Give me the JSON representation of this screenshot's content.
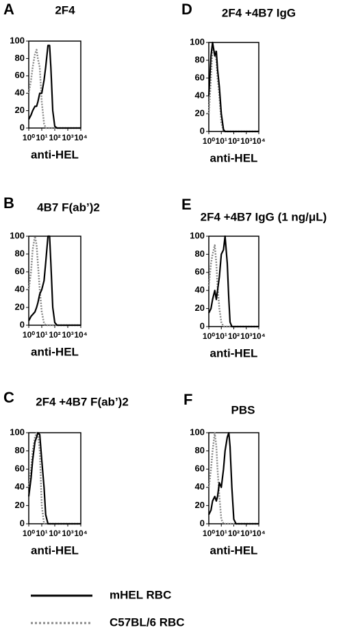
{
  "chart_data": [
    {
      "type": "line",
      "label": "A",
      "title": "2F4",
      "x_label": "anti-HEL",
      "log_x": true,
      "x": [
        1,
        1.5,
        2,
        3,
        4,
        5,
        7,
        10,
        15,
        20,
        30,
        40,
        50,
        70,
        100,
        150,
        200,
        500,
        1000,
        10000
      ],
      "xlim": [
        1,
        10000
      ],
      "xticks": [
        {
          "value": 1,
          "label": "10⁰"
        },
        {
          "value": 10,
          "label": "10¹"
        },
        {
          "value": 100,
          "label": "10²"
        },
        {
          "value": 1000,
          "label": "10³"
        },
        {
          "value": 10000,
          "label": "10⁴"
        }
      ],
      "ylim": [
        0,
        100
      ],
      "yticks": [
        0,
        20,
        40,
        60,
        80,
        100
      ],
      "series": [
        {
          "name": "mHEL RBC",
          "color": "#000000",
          "style": "solid",
          "values": [
            10,
            15,
            20,
            25,
            25,
            30,
            40,
            40,
            55,
            70,
            95,
            95,
            70,
            20,
            2,
            0,
            0,
            0,
            0,
            0
          ]
        },
        {
          "name": "C57BL/6 RBC",
          "color": "#888888",
          "style": "dotted",
          "values": [
            40,
            55,
            70,
            85,
            90,
            80,
            70,
            30,
            5,
            0,
            0,
            0,
            0,
            0,
            0,
            0,
            0,
            0,
            0,
            0
          ]
        }
      ]
    },
    {
      "type": "line",
      "label": "B",
      "title": "4B7 F(ab’)2",
      "x_label": "anti-HEL",
      "log_x": true,
      "x": [
        1,
        1.5,
        2,
        3,
        4,
        5,
        7,
        10,
        15,
        20,
        30,
        40,
        50,
        70,
        100,
        150,
        200,
        500,
        1000,
        10000
      ],
      "xlim": [
        1,
        10000
      ],
      "xticks": [
        {
          "value": 1,
          "label": "10⁰"
        },
        {
          "value": 10,
          "label": "10¹"
        },
        {
          "value": 100,
          "label": "10²"
        },
        {
          "value": 1000,
          "label": "10³"
        },
        {
          "value": 10000,
          "label": "10⁴"
        }
      ],
      "ylim": [
        0,
        100
      ],
      "yticks": [
        0,
        20,
        40,
        60,
        80,
        100
      ],
      "series": [
        {
          "name": "mHEL RBC",
          "color": "#000000",
          "style": "solid",
          "values": [
            5,
            10,
            12,
            15,
            20,
            25,
            35,
            40,
            50,
            70,
            100,
            100,
            70,
            20,
            3,
            0,
            0,
            0,
            0,
            0
          ]
        },
        {
          "name": "C57BL/6 RBC",
          "color": "#888888",
          "style": "dotted",
          "values": [
            40,
            60,
            85,
            100,
            90,
            70,
            40,
            15,
            2,
            0,
            0,
            0,
            0,
            0,
            0,
            0,
            0,
            0,
            0,
            0
          ]
        }
      ]
    },
    {
      "type": "line",
      "label": "C",
      "title": "2F4 +4B7 F(ab’)2",
      "x_label": "anti-HEL",
      "log_x": true,
      "x": [
        1,
        1.5,
        2,
        3,
        4,
        5,
        7,
        10,
        15,
        20,
        30,
        40,
        50,
        70,
        100,
        150,
        200,
        500,
        1000,
        10000
      ],
      "xlim": [
        1,
        10000
      ],
      "xticks": [
        {
          "value": 1,
          "label": "10⁰"
        },
        {
          "value": 10,
          "label": "10¹"
        },
        {
          "value": 100,
          "label": "10²"
        },
        {
          "value": 1000,
          "label": "10³"
        },
        {
          "value": 10000,
          "label": "10⁴"
        }
      ],
      "ylim": [
        0,
        100
      ],
      "yticks": [
        0,
        20,
        40,
        60,
        80,
        100
      ],
      "series": [
        {
          "name": "mHEL RBC",
          "color": "#000000",
          "style": "solid",
          "values": [
            30,
            50,
            70,
            90,
            95,
            100,
            98,
            70,
            40,
            10,
            0,
            0,
            0,
            0,
            0,
            0,
            0,
            0,
            0,
            0
          ]
        },
        {
          "name": "C57BL/6 RBC",
          "color": "#888888",
          "style": "dotted",
          "values": [
            40,
            60,
            80,
            95,
            100,
            100,
            80,
            20,
            0,
            0,
            0,
            0,
            0,
            0,
            0,
            0,
            0,
            0,
            0,
            0
          ]
        }
      ]
    },
    {
      "type": "line",
      "label": "D",
      "title": "2F4 +4B7 IgG",
      "x_label": "anti-HEL",
      "log_x": true,
      "x": [
        1,
        1.5,
        2,
        3,
        4,
        5,
        7,
        10,
        15,
        20,
        30,
        40,
        50,
        70,
        100,
        150,
        200,
        500,
        1000,
        10000
      ],
      "xlim": [
        1,
        10000
      ],
      "xticks": [
        {
          "value": 1,
          "label": "10⁰"
        },
        {
          "value": 10,
          "label": "10¹"
        },
        {
          "value": 100,
          "label": "10²"
        },
        {
          "value": 1000,
          "label": "10³"
        },
        {
          "value": 10000,
          "label": "10⁴"
        }
      ],
      "ylim": [
        0,
        100
      ],
      "yticks": [
        0,
        20,
        40,
        60,
        80,
        100
      ],
      "series": [
        {
          "name": "mHEL RBC",
          "color": "#000000",
          "style": "solid",
          "values": [
            40,
            85,
            100,
            85,
            90,
            70,
            50,
            20,
            2,
            0,
            0,
            0,
            0,
            0,
            0,
            0,
            0,
            0,
            0,
            0
          ]
        },
        {
          "name": "C57BL/6 RBC",
          "color": "#888888",
          "style": "dotted",
          "values": [
            20,
            60,
            95,
            90,
            80,
            60,
            40,
            10,
            0,
            0,
            0,
            0,
            0,
            0,
            0,
            0,
            0,
            0,
            0,
            0
          ]
        }
      ]
    },
    {
      "type": "line",
      "label": "E",
      "title": "2F4 +4B7 IgG (1 ng/μL)",
      "x_label": "anti-HEL",
      "log_x": true,
      "x": [
        1,
        1.5,
        2,
        3,
        4,
        5,
        7,
        10,
        15,
        20,
        30,
        40,
        50,
        70,
        100,
        150,
        200,
        500,
        1000,
        10000
      ],
      "xlim": [
        1,
        10000
      ],
      "xticks": [
        {
          "value": 1,
          "label": "10⁰"
        },
        {
          "value": 10,
          "label": "10¹"
        },
        {
          "value": 100,
          "label": "10²"
        },
        {
          "value": 1000,
          "label": "10³"
        },
        {
          "value": 10000,
          "label": "10⁴"
        }
      ],
      "ylim": [
        0,
        100
      ],
      "yticks": [
        0,
        20,
        40,
        60,
        80,
        100
      ],
      "series": [
        {
          "name": "mHEL RBC",
          "color": "#000000",
          "style": "solid",
          "values": [
            15,
            20,
            30,
            40,
            30,
            40,
            55,
            80,
            85,
            100,
            70,
            30,
            5,
            0,
            0,
            0,
            0,
            0,
            0,
            0
          ]
        },
        {
          "name": "C57BL/6 RBC",
          "color": "#888888",
          "style": "dotted",
          "values": [
            45,
            70,
            80,
            90,
            70,
            45,
            20,
            5,
            0,
            0,
            0,
            0,
            0,
            0,
            0,
            0,
            0,
            0,
            0,
            0
          ]
        }
      ]
    },
    {
      "type": "line",
      "label": "F",
      "title": "PBS",
      "x_label": "anti-HEL",
      "log_x": true,
      "x": [
        1,
        1.5,
        2,
        3,
        4,
        5,
        7,
        10,
        15,
        20,
        30,
        40,
        50,
        70,
        100,
        150,
        200,
        500,
        1000,
        10000
      ],
      "xlim": [
        1,
        10000
      ],
      "xticks": [
        {
          "value": 1,
          "label": "10⁰"
        },
        {
          "value": 10,
          "label": "10¹"
        },
        {
          "value": 100,
          "label": "10²"
        },
        {
          "value": 1000,
          "label": "10³"
        },
        {
          "value": 10000,
          "label": "10⁴"
        }
      ],
      "ylim": [
        0,
        100
      ],
      "yticks": [
        0,
        20,
        40,
        60,
        80,
        100
      ],
      "series": [
        {
          "name": "mHEL RBC",
          "color": "#000000",
          "style": "solid",
          "values": [
            10,
            15,
            25,
            30,
            25,
            30,
            45,
            40,
            60,
            80,
            95,
            100,
            85,
            40,
            5,
            0,
            0,
            0,
            0,
            0
          ]
        },
        {
          "name": "C57BL/6 RBC",
          "color": "#888888",
          "style": "dotted",
          "values": [
            40,
            60,
            80,
            100,
            85,
            60,
            30,
            5,
            0,
            0,
            0,
            0,
            0,
            0,
            0,
            0,
            0,
            0,
            0,
            0
          ]
        }
      ]
    }
  ]
}
